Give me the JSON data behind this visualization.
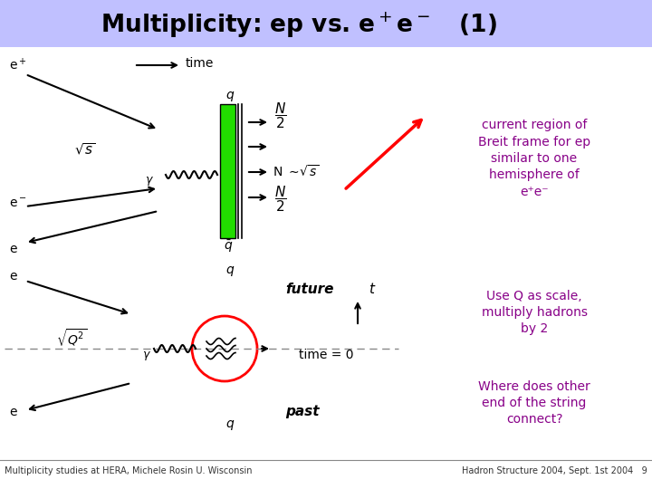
{
  "header_color": "#c0c0ff",
  "slide_bg": "#ffffff",
  "title_color": "#000000",
  "annotation1_color": "#880088",
  "annotation1": "current region of\nBreit frame for ep\nsimilar to one\nhemisphere of\ne⁺e⁻",
  "annotation2_color": "#880088",
  "annotation2": "Use Q as scale,\nmultiply hadrons\nby 2",
  "annotation3_color": "#880088",
  "annotation3": "Where does other\nend of the string\nconnect?",
  "footer_left": "Multiplicity studies at HERA, Michele Rosin U. Wisconsin",
  "footer_right": "Hadron Structure 2004, Sept. 1st 2004   9",
  "footer_color": "#333333"
}
